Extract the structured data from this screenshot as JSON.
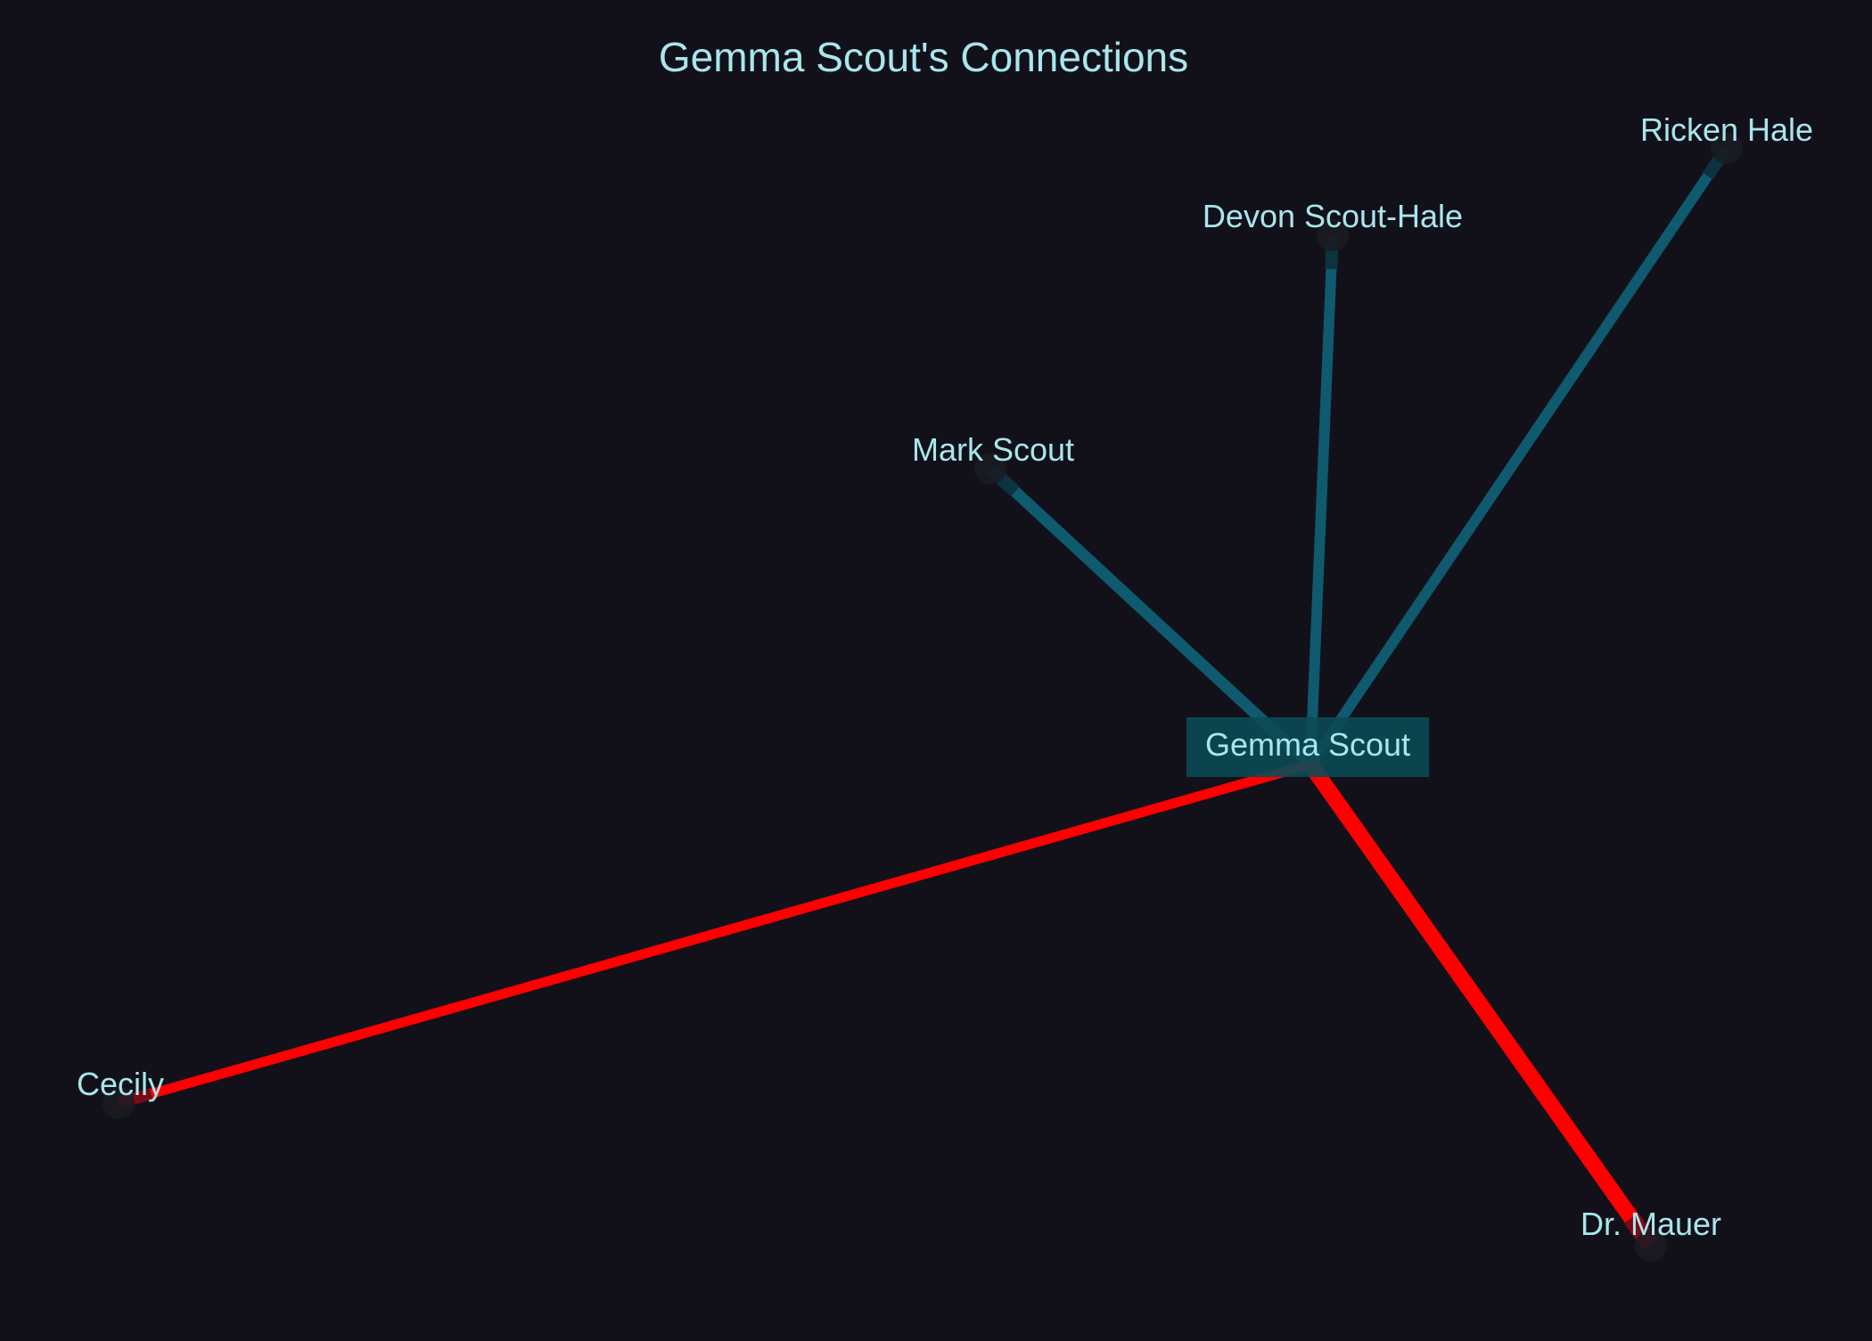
{
  "diagram": {
    "title": "Gemma Scout's Connections",
    "colors": {
      "background": "#12111a",
      "text": "#a8e6ec",
      "family_edge": "#0f5a6e",
      "hostile_edge": "#ff0000",
      "center_box": "#0b4a55",
      "node_dot": "#1b1b22"
    },
    "center": {
      "id": "gemma",
      "label": "Gemma Scout"
    },
    "nodes": [
      {
        "id": "ricken",
        "label": "Ricken Hale",
        "edge_type": "family"
      },
      {
        "id": "devon",
        "label": "Devon Scout-Hale",
        "edge_type": "family"
      },
      {
        "id": "mark",
        "label": "Mark Scout",
        "edge_type": "family"
      },
      {
        "id": "cecily",
        "label": "Cecily",
        "edge_type": "hostile"
      },
      {
        "id": "mauer",
        "label": "Dr. Mauer",
        "edge_type": "hostile"
      }
    ]
  }
}
